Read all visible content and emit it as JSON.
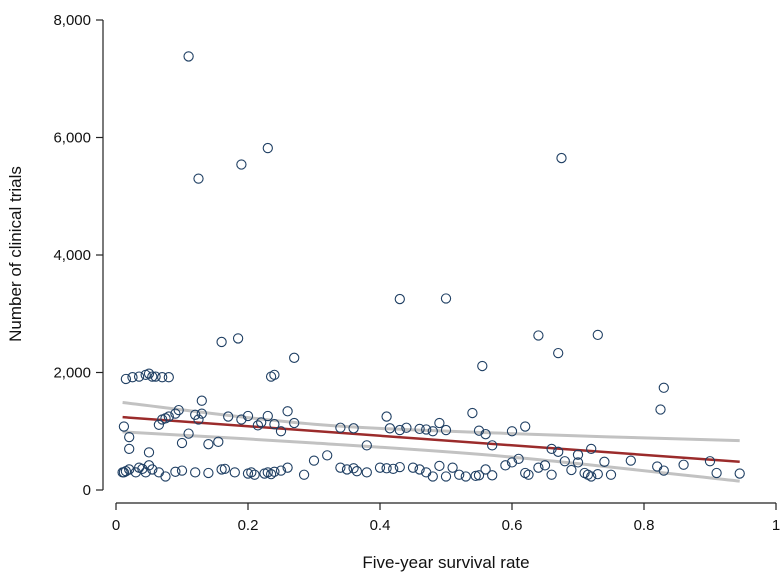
{
  "colors": {
    "points": "#1f3f63",
    "fit_line": "#9b2b2b",
    "ci_band": "#c2c2c2",
    "axis": "#222222"
  },
  "chart_data": {
    "type": "scatter",
    "xlabel": "Five-year survival rate",
    "ylabel": "Number of clinical trials",
    "xlim": [
      0,
      1
    ],
    "ylim": [
      0,
      8000
    ],
    "x_ticks": [
      0,
      0.2,
      0.4,
      0.6,
      0.8,
      1
    ],
    "x_tick_labels": [
      "0",
      "0.2",
      "0.4",
      "0.6",
      "0.8",
      "1"
    ],
    "y_ticks": [
      0,
      2000,
      4000,
      6000,
      8000
    ],
    "y_tick_labels": [
      "0",
      "2,000",
      "4,000",
      "6,000",
      "8,000"
    ],
    "grid": false,
    "legend": "none",
    "fit_line": {
      "x": [
        0.01,
        0.945
      ],
      "y": [
        1240,
        480
      ]
    },
    "ci_upper": {
      "x": [
        0.01,
        0.3,
        0.6,
        0.945
      ],
      "y": [
        1490,
        1120,
        960,
        840
      ]
    },
    "ci_lower": {
      "x": [
        0.01,
        0.3,
        0.6,
        0.945
      ],
      "y": [
        990,
        800,
        560,
        150
      ]
    },
    "points": [
      [
        0.01,
        300
      ],
      [
        0.012,
        300
      ],
      [
        0.015,
        320
      ],
      [
        0.02,
        350
      ],
      [
        0.03,
        300
      ],
      [
        0.035,
        380
      ],
      [
        0.04,
        360
      ],
      [
        0.045,
        300
      ],
      [
        0.05,
        420
      ],
      [
        0.055,
        350
      ],
      [
        0.065,
        300
      ],
      [
        0.075,
        230
      ],
      [
        0.09,
        310
      ],
      [
        0.1,
        330
      ],
      [
        0.12,
        300
      ],
      [
        0.14,
        290
      ],
      [
        0.16,
        350
      ],
      [
        0.165,
        360
      ],
      [
        0.18,
        300
      ],
      [
        0.2,
        280
      ],
      [
        0.205,
        300
      ],
      [
        0.21,
        260
      ],
      [
        0.225,
        280
      ],
      [
        0.23,
        300
      ],
      [
        0.235,
        270
      ],
      [
        0.24,
        310
      ],
      [
        0.25,
        330
      ],
      [
        0.26,
        380
      ],
      [
        0.285,
        260
      ],
      [
        0.3,
        500
      ],
      [
        0.32,
        590
      ],
      [
        0.34,
        380
      ],
      [
        0.35,
        350
      ],
      [
        0.36,
        370
      ],
      [
        0.365,
        320
      ],
      [
        0.38,
        300
      ],
      [
        0.4,
        380
      ],
      [
        0.41,
        370
      ],
      [
        0.42,
        360
      ],
      [
        0.43,
        390
      ],
      [
        0.45,
        380
      ],
      [
        0.46,
        350
      ],
      [
        0.47,
        300
      ],
      [
        0.48,
        230
      ],
      [
        0.49,
        410
      ],
      [
        0.5,
        230
      ],
      [
        0.51,
        380
      ],
      [
        0.52,
        260
      ],
      [
        0.53,
        230
      ],
      [
        0.545,
        240
      ],
      [
        0.55,
        250
      ],
      [
        0.56,
        350
      ],
      [
        0.57,
        250
      ],
      [
        0.59,
        420
      ],
      [
        0.6,
        470
      ],
      [
        0.61,
        530
      ],
      [
        0.62,
        290
      ],
      [
        0.625,
        260
      ],
      [
        0.64,
        380
      ],
      [
        0.65,
        420
      ],
      [
        0.66,
        260
      ],
      [
        0.68,
        490
      ],
      [
        0.69,
        340
      ],
      [
        0.7,
        470
      ],
      [
        0.71,
        290
      ],
      [
        0.715,
        260
      ],
      [
        0.72,
        230
      ],
      [
        0.73,
        270
      ],
      [
        0.74,
        480
      ],
      [
        0.75,
        260
      ],
      [
        0.78,
        500
      ],
      [
        0.82,
        400
      ],
      [
        0.83,
        330
      ],
      [
        0.86,
        430
      ],
      [
        0.9,
        490
      ],
      [
        0.91,
        290
      ],
      [
        0.945,
        280
      ],
      [
        0.012,
        1080
      ],
      [
        0.02,
        700
      ],
      [
        0.02,
        900
      ],
      [
        0.05,
        640
      ],
      [
        0.065,
        1110
      ],
      [
        0.07,
        1200
      ],
      [
        0.075,
        1220
      ],
      [
        0.08,
        1250
      ],
      [
        0.09,
        1300
      ],
      [
        0.095,
        1360
      ],
      [
        0.1,
        800
      ],
      [
        0.11,
        960
      ],
      [
        0.12,
        1280
      ],
      [
        0.125,
        1200
      ],
      [
        0.13,
        1300
      ],
      [
        0.14,
        780
      ],
      [
        0.155,
        820
      ],
      [
        0.17,
        1250
      ],
      [
        0.19,
        1200
      ],
      [
        0.2,
        1260
      ],
      [
        0.215,
        1100
      ],
      [
        0.22,
        1150
      ],
      [
        0.23,
        1260
      ],
      [
        0.24,
        1120
      ],
      [
        0.25,
        1000
      ],
      [
        0.26,
        1340
      ],
      [
        0.27,
        1140
      ],
      [
        0.34,
        1060
      ],
      [
        0.36,
        1050
      ],
      [
        0.38,
        760
      ],
      [
        0.41,
        1250
      ],
      [
        0.415,
        1050
      ],
      [
        0.43,
        1020
      ],
      [
        0.44,
        1060
      ],
      [
        0.46,
        1040
      ],
      [
        0.47,
        1030
      ],
      [
        0.48,
        1000
      ],
      [
        0.49,
        1140
      ],
      [
        0.5,
        1020
      ],
      [
        0.54,
        1310
      ],
      [
        0.55,
        1010
      ],
      [
        0.56,
        950
      ],
      [
        0.57,
        760
      ],
      [
        0.6,
        1000
      ],
      [
        0.62,
        1080
      ],
      [
        0.66,
        700
      ],
      [
        0.67,
        650
      ],
      [
        0.7,
        600
      ],
      [
        0.72,
        700
      ],
      [
        0.825,
        1370
      ],
      [
        0.015,
        1890
      ],
      [
        0.025,
        1920
      ],
      [
        0.035,
        1930
      ],
      [
        0.045,
        1960
      ],
      [
        0.05,
        1980
      ],
      [
        0.055,
        1930
      ],
      [
        0.06,
        1930
      ],
      [
        0.07,
        1920
      ],
      [
        0.08,
        1920
      ],
      [
        0.13,
        1520
      ],
      [
        0.235,
        1930
      ],
      [
        0.24,
        1960
      ],
      [
        0.555,
        2110
      ],
      [
        0.83,
        1740
      ],
      [
        0.16,
        2520
      ],
      [
        0.185,
        2580
      ],
      [
        0.27,
        2250
      ],
      [
        0.43,
        3250
      ],
      [
        0.5,
        3260
      ],
      [
        0.64,
        2630
      ],
      [
        0.67,
        2330
      ],
      [
        0.73,
        2640
      ],
      [
        0.125,
        5300
      ],
      [
        0.19,
        5540
      ],
      [
        0.23,
        5820
      ],
      [
        0.11,
        7380
      ],
      [
        0.675,
        5650
      ]
    ]
  }
}
